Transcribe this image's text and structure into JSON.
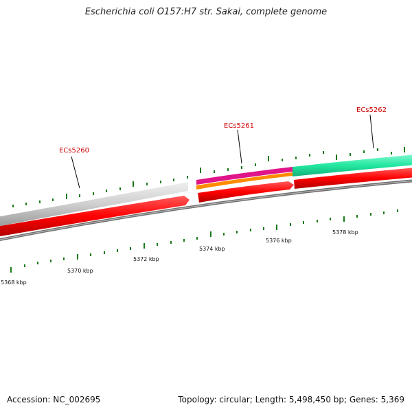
{
  "title": "Escherichia coli O157:H7 str. Sakai, complete genome",
  "footer": {
    "accession": "Accession: NC_002695",
    "summary": "Topology: circular; Length: 5,498,450 bp; Genes: 5,369"
  },
  "colors": {
    "gene_label": "#cc0000",
    "cds_forward": "#e8e8e8",
    "cds_reverse": "#ff0000",
    "magenta_feature": "#e0158a",
    "orange_feature": "#ff8c00",
    "green_feature": "#22e8a0",
    "backbone": "#777777",
    "tick": "#1a7a1a"
  },
  "genes": [
    {
      "id": "ECs5260",
      "label": "ECs5260"
    },
    {
      "id": "ECs5261",
      "label": "ECs5261"
    },
    {
      "id": "ECs5262",
      "label": "ECs5262"
    }
  ],
  "scale_labels": [
    "5368 kbp",
    "5370 kbp",
    "5372 kbp",
    "5374 kbp",
    "5376 kbp",
    "5378 kbp"
  ]
}
